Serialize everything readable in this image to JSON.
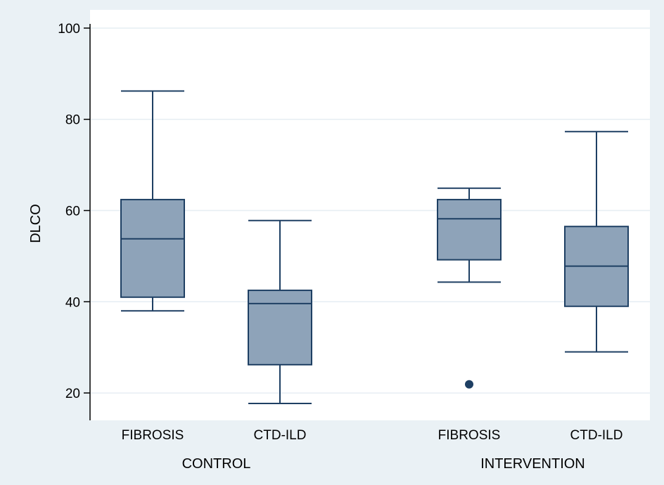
{
  "chart_data": {
    "type": "box",
    "ylabel": "DLCO",
    "xlabel": "",
    "ylim": [
      14,
      104
    ],
    "yticks": [
      20,
      40,
      60,
      80,
      100
    ],
    "grid": true,
    "groups": [
      {
        "label": "CONTROL",
        "boxes": [
          {
            "category": "FIBROSIS",
            "min": 38,
            "q1": 41,
            "median": 53.8,
            "q3": 62.4,
            "max": 86.2,
            "outliers": []
          },
          {
            "category": "CTD-ILD",
            "min": 17.7,
            "q1": 26.2,
            "median": 39.6,
            "q3": 42.5,
            "max": 57.8,
            "outliers": []
          }
        ]
      },
      {
        "label": "INTERVENTION",
        "boxes": [
          {
            "category": "FIBROSIS",
            "min": 44.3,
            "q1": 49.2,
            "median": 58.2,
            "q3": 62.4,
            "max": 64.9,
            "outliers": [
              21.9
            ]
          },
          {
            "category": "CTD-ILD",
            "min": 29,
            "q1": 39,
            "median": 47.8,
            "q3": 56.5,
            "max": 77.3,
            "outliers": []
          }
        ]
      }
    ],
    "colors": {
      "box_fill": "#8ea3b9",
      "box_stroke": "#1e3f63",
      "grid": "#e6eef3",
      "plot_bg": "#ffffff",
      "outer_bg": "#eaf1f5",
      "axis": "#000000"
    }
  }
}
